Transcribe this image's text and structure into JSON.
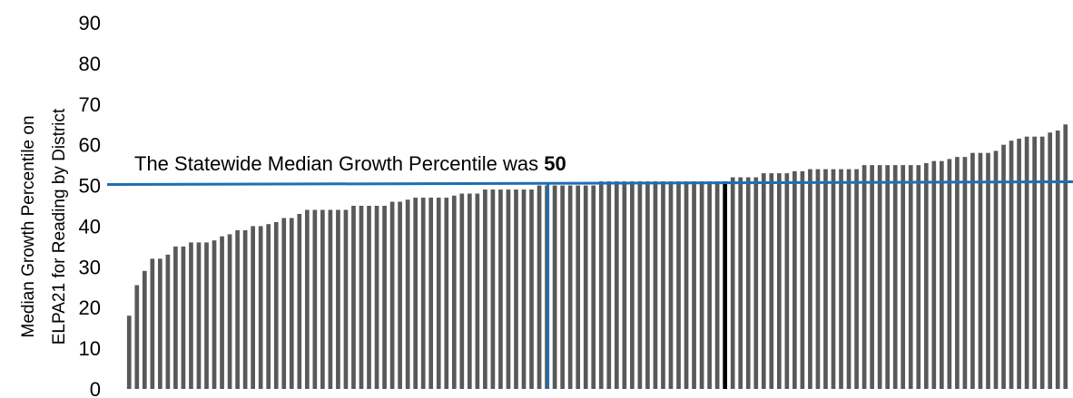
{
  "chart_data": {
    "type": "bar",
    "ylabel": [
      "Median Growth Percentile on",
      "ELPA21 for Reading by District"
    ],
    "ylim": [
      0,
      90
    ],
    "yticks": [
      0,
      10,
      20,
      30,
      40,
      50,
      60,
      70,
      80,
      90
    ],
    "grid": false,
    "bar_color": "#595959",
    "highlight_bar_color": "#000000",
    "reference_line": {
      "value": 50,
      "color": "#1f6eb4",
      "label": "The Statewide Median Growth Percentile was ",
      "label_value": "50"
    },
    "values": [
      18,
      25.5,
      29,
      32,
      32,
      33,
      35,
      35,
      36,
      36,
      36,
      36.5,
      37.5,
      38,
      39,
      39,
      40,
      40,
      40.5,
      41,
      42,
      42,
      43,
      44,
      44,
      44,
      44,
      44,
      44,
      45,
      45,
      45,
      45,
      45,
      46,
      46,
      46.5,
      47,
      47,
      47,
      47,
      47,
      47.5,
      48,
      48,
      48,
      49,
      49,
      49,
      49,
      49,
      49,
      49,
      50,
      50,
      50,
      50,
      50,
      50,
      50,
      50,
      51,
      51,
      51,
      51,
      51,
      51,
      51,
      51,
      51,
      51,
      51,
      51,
      51,
      51,
      51,
      51,
      51,
      52,
      52,
      52,
      52,
      53,
      53,
      53,
      53,
      53.5,
      53.5,
      54,
      54,
      54,
      54,
      54,
      54,
      54,
      55,
      55,
      55,
      55,
      55,
      55,
      55,
      55,
      55.5,
      56,
      56,
      56.5,
      57,
      57,
      58,
      58,
      58,
      58.5,
      60,
      61,
      61.5,
      62,
      62,
      62,
      63,
      63.5,
      65
    ],
    "highlight_index": 77
  }
}
